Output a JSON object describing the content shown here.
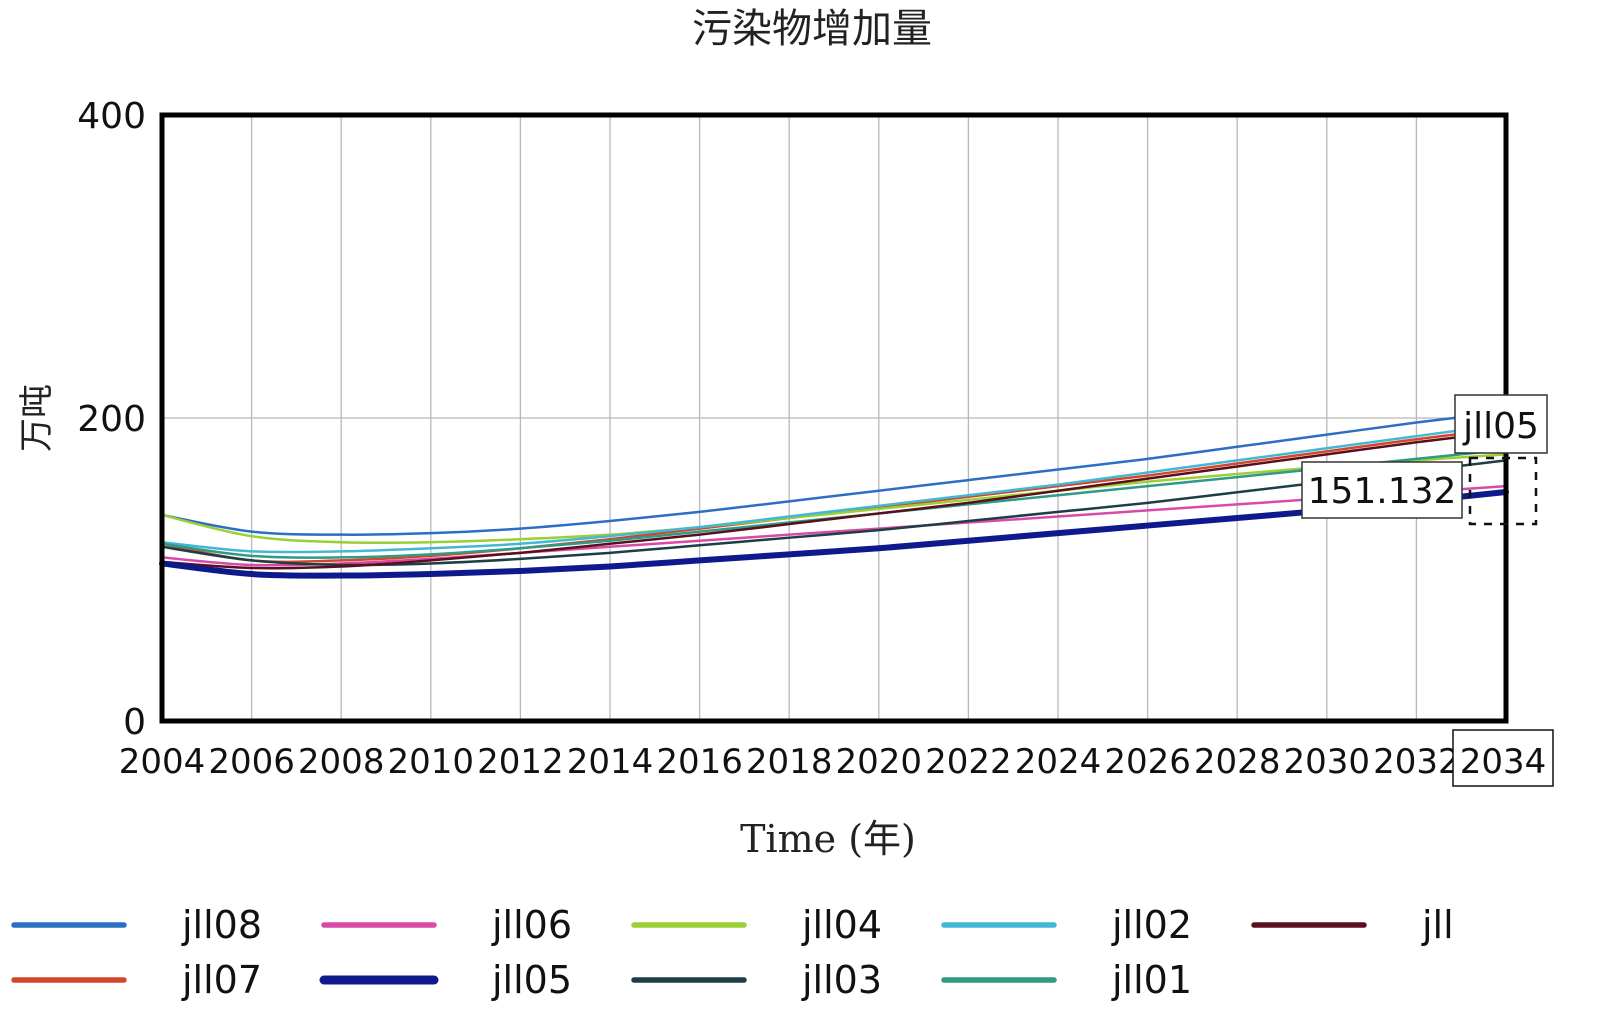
{
  "chart_data": {
    "type": "line",
    "title": "污染物增加量",
    "xlabel": "Time (年)",
    "ylabel": "万吨",
    "xlim": [
      2004,
      2034
    ],
    "ylim": [
      0,
      400
    ],
    "grid": true,
    "legend_position": "bottom",
    "x_ticks": [
      "2004",
      "2006",
      "2008",
      "2010",
      "2012",
      "2014",
      "2016",
      "2018",
      "2020",
      "2022",
      "2024",
      "2026",
      "2028",
      "2030",
      "2032",
      "2034"
    ],
    "y_ticks": [
      "0",
      "200",
      "400"
    ],
    "x": [
      2004,
      2006,
      2008,
      2010,
      2012,
      2014,
      2016,
      2018,
      2020,
      2022,
      2024,
      2026,
      2028,
      2030,
      2032,
      2034
    ],
    "series": [
      {
        "name": "jll08",
        "color": "#2a6fc4",
        "width": 2.5,
        "values": [
          136,
          125,
          123,
          124,
          127,
          132,
          138,
          145,
          152,
          159,
          166,
          173,
          181,
          189,
          197,
          204
        ]
      },
      {
        "name": "jll07",
        "color": "#d2462a",
        "width": 2.5,
        "values": [
          117,
          106,
          106,
          109,
          114,
          120,
          127,
          134,
          141,
          148,
          155,
          162,
          170,
          178,
          186,
          193
        ]
      },
      {
        "name": "jll06",
        "color": "#d94aa8",
        "width": 2.5,
        "values": [
          108,
          103,
          104,
          107,
          111,
          115,
          119,
          123,
          127,
          131,
          135,
          139,
          143,
          147,
          151,
          155
        ]
      },
      {
        "name": "jll05",
        "color": "#0e1a8c",
        "width": 6,
        "values": [
          104,
          97,
          96,
          97,
          99,
          102,
          106,
          110,
          114,
          119,
          124,
          129,
          134,
          139,
          145,
          151.132
        ]
      },
      {
        "name": "jll04",
        "color": "#9ccf34",
        "width": 2.5,
        "values": [
          136,
          122,
          118,
          118,
          120,
          123,
          128,
          134,
          140,
          146,
          152,
          158,
          163,
          168,
          172,
          176
        ]
      },
      {
        "name": "jll03",
        "color": "#1c3f45",
        "width": 2.5,
        "values": [
          115,
          106,
          103,
          104,
          107,
          111,
          116,
          121,
          126,
          132,
          138,
          144,
          151,
          158,
          165,
          172
        ]
      },
      {
        "name": "jll02",
        "color": "#43b8d6",
        "width": 2.5,
        "values": [
          118,
          112,
          112,
          114,
          117,
          122,
          128,
          135,
          142,
          149,
          156,
          164,
          172,
          180,
          188,
          196
        ]
      },
      {
        "name": "jll01",
        "color": "#2f9a86",
        "width": 2.5,
        "values": [
          117,
          109,
          108,
          110,
          114,
          119,
          125,
          131,
          137,
          143,
          149,
          155,
          161,
          167,
          173,
          179
        ]
      },
      {
        "name": "jll",
        "color": "#5a0f1c",
        "width": 2.5,
        "values": [
          105,
          101,
          102,
          106,
          111,
          117,
          123,
          130,
          137,
          144,
          152,
          160,
          168,
          176,
          184,
          191
        ]
      }
    ],
    "annotations": {
      "series_label": "jll05",
      "value_label": "151.132",
      "x_label": "2034"
    }
  },
  "legend": {
    "items": [
      "jll08",
      "jll06",
      "jll04",
      "jll02",
      "jll",
      "jll07",
      "jll05",
      "jll03",
      "jll01"
    ]
  }
}
